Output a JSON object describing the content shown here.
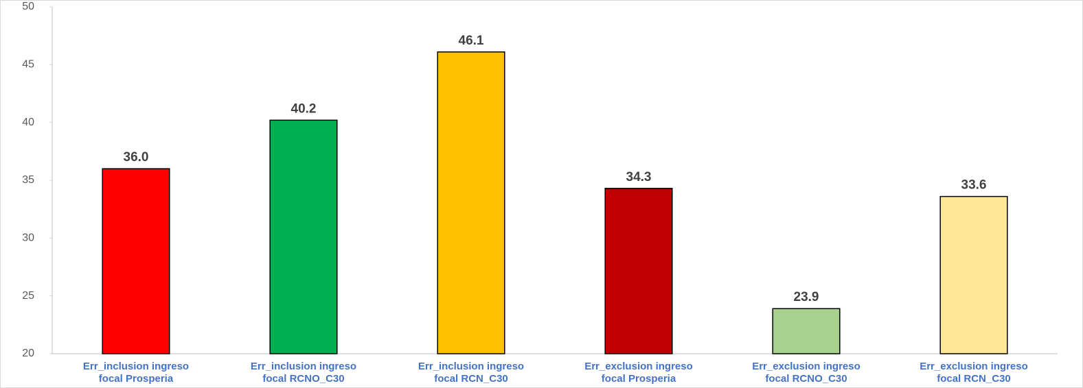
{
  "chart_data": {
    "type": "bar",
    "categories": [
      [
        "Err_inclusion ingreso",
        "focal Prosperia"
      ],
      [
        "Err_inclusion ingreso",
        "focal RCNO_C30"
      ],
      [
        "Err_inclusion ingreso",
        "focal RCN_C30"
      ],
      [
        "Err_exclusion ingreso",
        "focal Prosperia"
      ],
      [
        "Err_exclusion ingreso",
        "focal RCNO_C30"
      ],
      [
        "Err_exclusion ingreso",
        "focal RCN_C30"
      ]
    ],
    "values": [
      36,
      40.2,
      46.1,
      34.3,
      23.9,
      33.6
    ],
    "value_labels": [
      "36.0",
      "40.2",
      "46.1",
      "34.3",
      "23.9",
      "33.6"
    ],
    "colors": [
      "#ff0000",
      "#00b050",
      "#ffc000",
      "#c00000",
      "#a9d18e",
      "#ffe699"
    ],
    "ylim": [
      20,
      50
    ],
    "yticks": [
      20,
      25,
      30,
      35,
      40,
      45,
      50
    ],
    "grid": false
  }
}
